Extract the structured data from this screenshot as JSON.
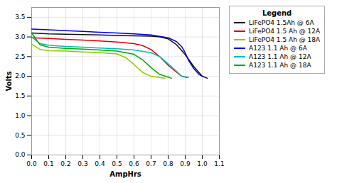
{
  "chart_data": {
    "type": "line",
    "xlabel": "AmpHrs",
    "ylabel": "Volts",
    "xlim": [
      0.0,
      1.1
    ],
    "ylim": [
      0.0,
      3.75
    ],
    "xticks": [
      {
        "value": 0.0,
        "label": "0.0"
      },
      0.1,
      0.2,
      0.3,
      0.4,
      0.5,
      0.6,
      0.7,
      0.8,
      0.9,
      {
        "value": 1.0,
        "label": "1.0"
      },
      1.1
    ],
    "yticks": [
      {
        "value": 0.0,
        "label": "0.0"
      },
      0.5,
      {
        "value": 1.0,
        "label": "1.0"
      },
      1.5,
      {
        "value": 2.0,
        "label": "2.0"
      },
      2.5,
      {
        "value": 3.0,
        "label": "3.0"
      },
      3.5
    ],
    "grid": true,
    "legend": "right",
    "legend_title": "Legend",
    "series": [
      {
        "name": "LiFePO4 1.5Ah @ 6A",
        "color": "#111111",
        "x": [
          0.0,
          0.1,
          0.2,
          0.3,
          0.4,
          0.5,
          0.6,
          0.7,
          0.75,
          0.8,
          0.85,
          0.9,
          0.95,
          1.0,
          1.03
        ],
        "values": [
          3.1,
          3.08,
          3.07,
          3.06,
          3.05,
          3.04,
          3.03,
          3.02,
          3.0,
          2.95,
          2.8,
          2.55,
          2.25,
          2.0,
          1.95
        ]
      },
      {
        "name": "LiFePO4 1.5 Ah @ 12A",
        "color": "#dd0000",
        "x": [
          0.0,
          0.1,
          0.2,
          0.3,
          0.4,
          0.5,
          0.6,
          0.65,
          0.7,
          0.75,
          0.8,
          0.85,
          0.88,
          0.91
        ],
        "values": [
          2.98,
          2.96,
          2.94,
          2.92,
          2.9,
          2.87,
          2.83,
          2.78,
          2.68,
          2.5,
          2.28,
          2.1,
          2.0,
          1.97
        ]
      },
      {
        "name": "LiFePO4 1.5 Ah @ 18A",
        "color": "#88cc00",
        "x": [
          0.0,
          0.05,
          0.1,
          0.2,
          0.3,
          0.4,
          0.5,
          0.55,
          0.6,
          0.65,
          0.7,
          0.75,
          0.78
        ],
        "values": [
          2.82,
          2.68,
          2.65,
          2.64,
          2.62,
          2.6,
          2.57,
          2.48,
          2.3,
          2.1,
          2.0,
          1.97,
          1.95
        ]
      },
      {
        "name": "A123 1.1 Ah @ 6A",
        "color": "#0000dd",
        "x": [
          0.0,
          0.1,
          0.2,
          0.3,
          0.4,
          0.5,
          0.6,
          0.7,
          0.8,
          0.85,
          0.88,
          0.9,
          0.92,
          0.95,
          0.98,
          1.0
        ],
        "values": [
          3.2,
          3.18,
          3.16,
          3.14,
          3.12,
          3.1,
          3.08,
          3.05,
          2.98,
          2.88,
          2.75,
          2.6,
          2.4,
          2.2,
          2.05,
          2.0
        ]
      },
      {
        "name": "A123 1.1 Ah @ 12A",
        "color": "#00bbbb",
        "x": [
          0.0,
          0.05,
          0.1,
          0.2,
          0.3,
          0.4,
          0.5,
          0.6,
          0.7,
          0.75,
          0.8,
          0.85,
          0.88,
          0.92
        ],
        "values": [
          3.0,
          2.83,
          2.79,
          2.76,
          2.74,
          2.72,
          2.7,
          2.67,
          2.6,
          2.5,
          2.32,
          2.12,
          2.0,
          1.97
        ]
      },
      {
        "name": "A123 1.1 Ah @ 18A",
        "color": "#00aa00",
        "x": [
          0.0,
          0.05,
          0.1,
          0.2,
          0.3,
          0.4,
          0.5,
          0.6,
          0.65,
          0.7,
          0.75,
          0.8,
          0.82
        ],
        "values": [
          3.1,
          2.8,
          2.74,
          2.71,
          2.69,
          2.67,
          2.64,
          2.56,
          2.42,
          2.22,
          2.05,
          1.98,
          1.95
        ]
      }
    ]
  }
}
